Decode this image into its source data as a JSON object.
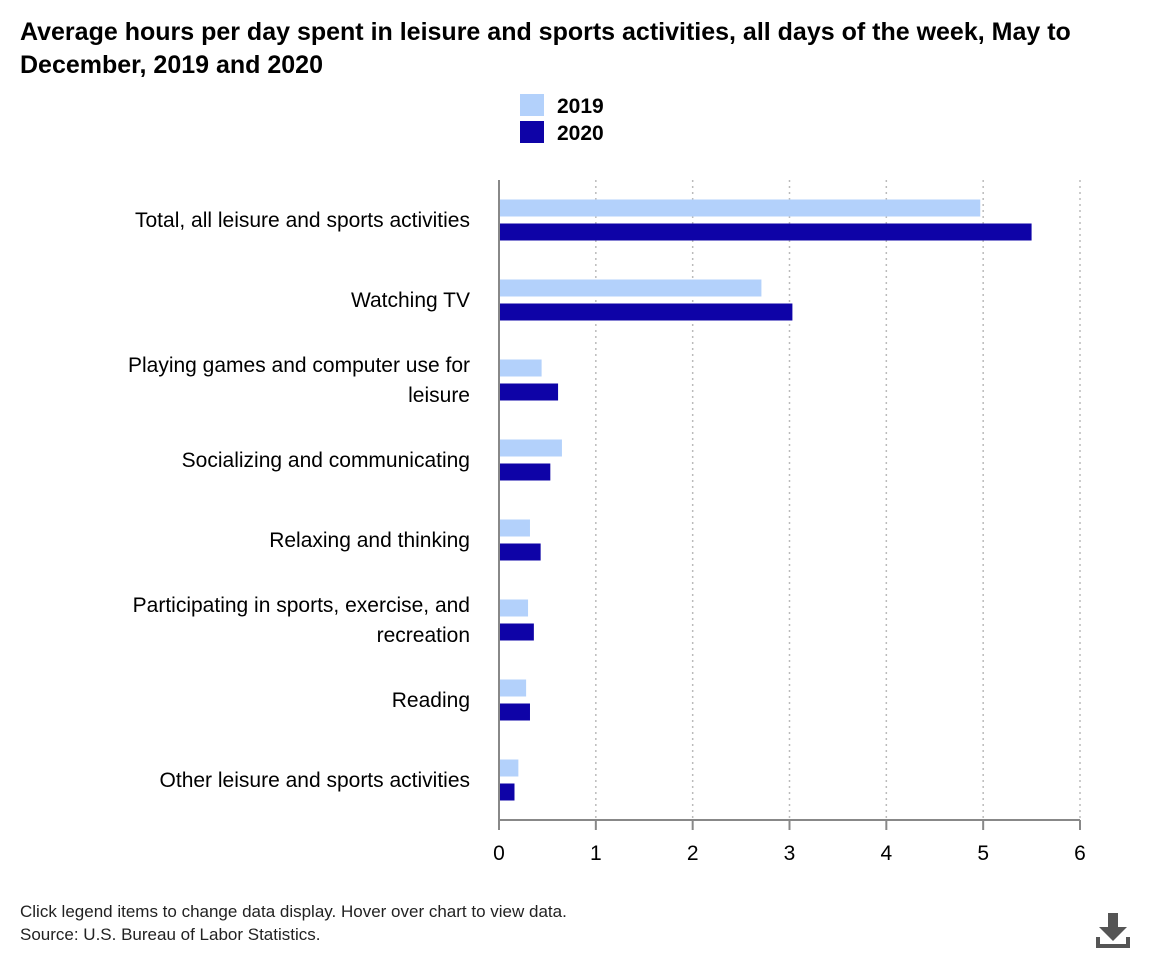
{
  "chart_data": {
    "type": "bar",
    "orientation": "horizontal",
    "title": "Average hours per day spent in leisure and sports activities, all days of the week, May to December, 2019 and 2020",
    "categories": [
      [
        "Total, all leisure and sports activities"
      ],
      [
        "Watching TV"
      ],
      [
        "Playing games and computer use for",
        "leisure"
      ],
      [
        "Socializing and communicating"
      ],
      [
        "Relaxing and thinking"
      ],
      [
        "Participating in sports, exercise, and",
        "recreation"
      ],
      [
        "Reading"
      ],
      [
        "Other leisure and sports activities"
      ]
    ],
    "series": [
      {
        "name": "2019",
        "color": "#b3d1fb",
        "values": [
          4.97,
          2.71,
          0.44,
          0.65,
          0.32,
          0.3,
          0.28,
          0.2
        ]
      },
      {
        "name": "2020",
        "color": "#0e03a7",
        "values": [
          5.5,
          3.03,
          0.61,
          0.53,
          0.43,
          0.36,
          0.32,
          0.16
        ]
      }
    ],
    "xlim": [
      0,
      6
    ],
    "xticks": [
      "0",
      "1",
      "2",
      "3",
      "4",
      "5",
      "6"
    ],
    "xlabel": "",
    "ylabel": "",
    "grid": "vertical dotted",
    "legend_position": "top-center"
  },
  "footer": {
    "note": "Click legend items to change data display. Hover over chart to view data.",
    "source": "Source: U.S. Bureau of Labor Statistics."
  },
  "icons": {
    "download": "download-icon"
  }
}
